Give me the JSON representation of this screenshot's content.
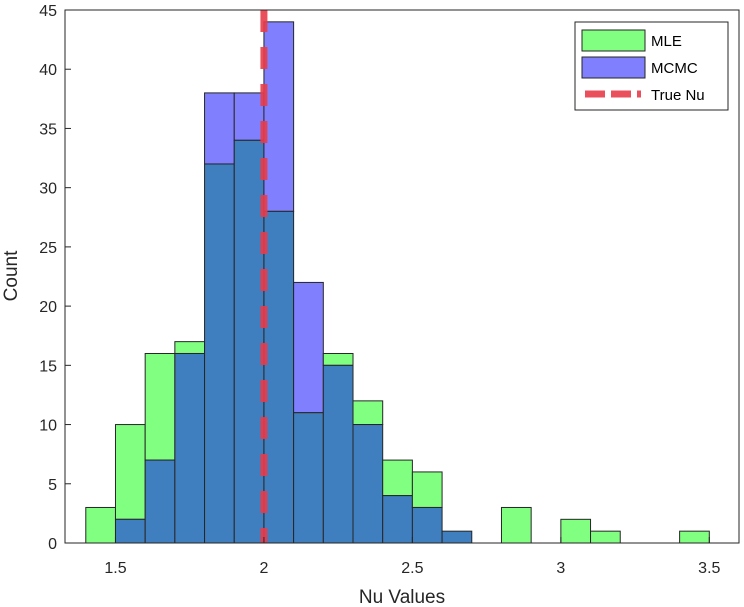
{
  "chart_data": {
    "type": "bar",
    "subtype": "overlapping-histogram",
    "xlabel": "Nu Values",
    "ylabel": "Count",
    "xlim": [
      1.33,
      3.6
    ],
    "ylim": [
      0,
      45
    ],
    "x_ticks": [
      1.5,
      2,
      2.5,
      3,
      3.5
    ],
    "x_tick_labels": [
      "1.5",
      "2",
      "2.5",
      "3",
      "3.5"
    ],
    "y_ticks": [
      0,
      5,
      10,
      15,
      20,
      25,
      30,
      35,
      40,
      45
    ],
    "y_tick_labels": [
      "0",
      "5",
      "10",
      "15",
      "20",
      "25",
      "30",
      "35",
      "40",
      "45"
    ],
    "grid": false,
    "bin_width": 0.1,
    "bin_edges": [
      1.4,
      1.5,
      1.6,
      1.7,
      1.8,
      1.9,
      2.0,
      2.1,
      2.2,
      2.3,
      2.4,
      2.5,
      2.6,
      2.7,
      2.8,
      2.9,
      3.0,
      3.1,
      3.2,
      3.3,
      3.4,
      3.5
    ],
    "series": [
      {
        "name": "MLE",
        "color": "#80ff80",
        "values": [
          3,
          10,
          16,
          17,
          32,
          34,
          28,
          11,
          16,
          12,
          7,
          6,
          1,
          0,
          3,
          0,
          2,
          1,
          0,
          0,
          1
        ]
      },
      {
        "name": "MCMC",
        "color": "#8080ff",
        "values": [
          0,
          2,
          7,
          16,
          38,
          38,
          44,
          22,
          15,
          10,
          4,
          3,
          1,
          0,
          0,
          0,
          0,
          0,
          0,
          0,
          0
        ]
      }
    ],
    "overlap_color": "#3f7fbf",
    "reference_line": {
      "name": "True Nu",
      "x": 2.0,
      "color": "#e83c4a",
      "style": "dashed"
    },
    "legend": {
      "position": "top-right",
      "entries": [
        {
          "label": "MLE",
          "color": "#80ff80",
          "kind": "patch"
        },
        {
          "label": "MCMC",
          "color": "#8080ff",
          "kind": "patch"
        },
        {
          "label": "True Nu",
          "color": "#e83c4a",
          "kind": "dashed-line"
        }
      ]
    }
  }
}
